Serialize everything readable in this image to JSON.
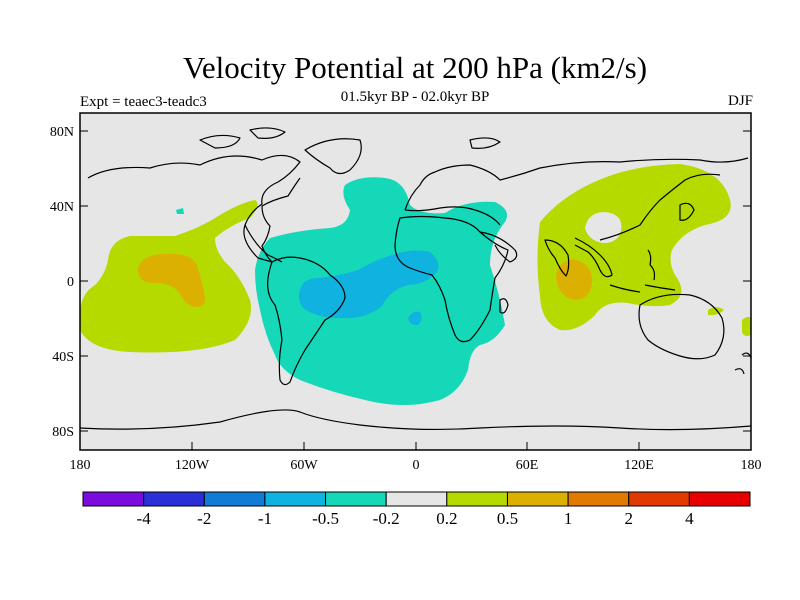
{
  "title": "Velocity Potential at 200 hPa (km2/s)",
  "subtitle": "01.5kyr BP - 02.0kyr BP",
  "experiment": "Expt = teaec3-teadc3",
  "season": "DJF",
  "lat_labels": [
    "80N",
    "40N",
    "0",
    "40S",
    "80S"
  ],
  "lon_labels": [
    "180",
    "120W",
    "60W",
    "0",
    "60E",
    "120E",
    "180"
  ],
  "colorbar": {
    "levels": [
      "-4",
      "-2",
      "-1",
      "-0.5",
      "-0.2",
      "0.2",
      "0.5",
      "1",
      "2",
      "4"
    ],
    "colors": [
      "#7b0ce0",
      "#2a2fd8",
      "#0f7dd6",
      "#10b3e0",
      "#15d8b8",
      "#e6e6e6",
      "#b5da00",
      "#dcb000",
      "#e07a00",
      "#e03a00",
      "#e80000"
    ]
  },
  "chart_data": {
    "type": "contour-map",
    "variable": "Velocity Potential at 200 hPa",
    "units": "km2/s",
    "period": "01.5kyr BP - 02.0kyr BP",
    "season": "DJF",
    "lon_range": [
      -180,
      180
    ],
    "lat_range": [
      -90,
      90
    ],
    "contour_levels": [
      -4,
      -2,
      -1,
      -0.5,
      -0.2,
      0.2,
      0.5,
      1,
      2,
      4
    ],
    "features": [
      {
        "region": "Atlantic / South America / Africa",
        "range": [
          -0.5,
          -0.2
        ]
      },
      {
        "region": "tropical South America to equatorial Atlantic",
        "range": [
          -1,
          -0.5
        ]
      },
      {
        "region": "central Pacific",
        "range": [
          0.2,
          0.5
        ]
      },
      {
        "region": "central Pacific core",
        "range": [
          0.5,
          1
        ]
      },
      {
        "region": "Indian Ocean / Maritime Continent / Asia",
        "range": [
          0.2,
          0.5
        ]
      },
      {
        "region": "Indian Ocean core",
        "range": [
          0.5,
          1
        ]
      }
    ]
  }
}
